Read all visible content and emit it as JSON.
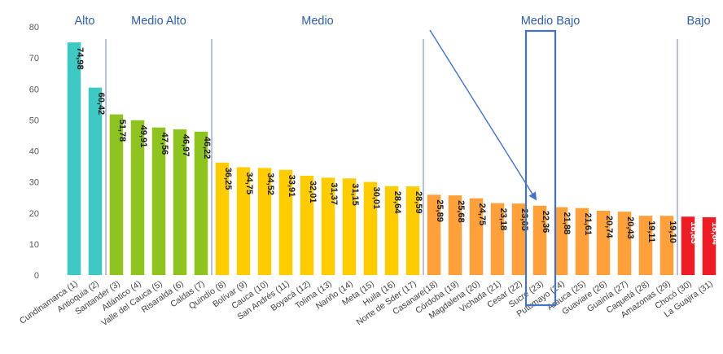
{
  "chart_data": {
    "type": "bar",
    "ylim": [
      0,
      80
    ],
    "yticks": [
      0,
      10,
      20,
      30,
      40,
      50,
      60,
      70,
      80
    ],
    "grid": false,
    "categories": [
      "Cundinamarca (1)",
      "Antioquia (2)",
      "Santander (3)",
      "Atlántico (4)",
      "Valle del Cauca (5)",
      "Risaralda (6)",
      "Caldas (7)",
      "Quindío (8)",
      "Bolívar (9)",
      "Cauca (10)",
      "San Andrés (11)",
      "Boyacá (12)",
      "Tolima (13)",
      "Nariño (14)",
      "Meta (15)",
      "Huila (16)",
      "Norte de Sder (17)",
      "Casanare(18)",
      "Córdoba (19)",
      "Magdalena (20)",
      "Vichada (21)",
      "Cesar (22)",
      "Sucre (23)",
      "Putumayo (24)",
      "Arauca (25)",
      "Guaviare (26)",
      "Guainía (27)",
      "Caquetá (28)",
      "Amazonas (29)",
      "Chocó (30)",
      "La Guajira (31)"
    ],
    "values": [
      74.98,
      60.42,
      51.78,
      49.91,
      47.56,
      46.97,
      46.22,
      36.25,
      34.75,
      34.52,
      33.91,
      32.01,
      31.37,
      31.15,
      30.01,
      28.64,
      28.59,
      25.89,
      25.68,
      24.75,
      23.18,
      23.05,
      22.36,
      21.88,
      21.61,
      20.74,
      20.43,
      19.11,
      19.1,
      18.83,
      18.64
    ],
    "data_labels": [
      "74,98",
      "60,42",
      "51,78",
      "49,91",
      "47,56",
      "46,97",
      "46,22",
      "36,25",
      "34,75",
      "34,52",
      "33,91",
      "32,01",
      "31,37",
      "31,15",
      "30,01",
      "28,64",
      "28,59",
      "25,89",
      "25,68",
      "24,75",
      "23,18",
      "23,05",
      "22,36",
      "21,88",
      "21,61",
      "20,74",
      "20,43",
      "19,11",
      "19,10",
      "18,83",
      "18,64"
    ],
    "groups": [
      {
        "label": "Alto",
        "start": 0,
        "end": 1,
        "color": "#3ec9c4",
        "text_color": "#1a1a1a"
      },
      {
        "label": "Medio Alto",
        "start": 2,
        "end": 6,
        "color": "#8fc31f",
        "text_color": "#1a1a1a"
      },
      {
        "label": "Medio",
        "start": 7,
        "end": 16,
        "color": "#ffcc00",
        "text_color": "#1a1a1a"
      },
      {
        "label": "Medio Bajo",
        "start": 17,
        "end": 28,
        "color": "#ffa03a",
        "text_color": "#1a1a1a"
      },
      {
        "label": "Bajo",
        "start": 29,
        "end": 30,
        "color": "#ee1c25",
        "text_color": "#ffffff"
      }
    ],
    "highlight_index": 22,
    "group_label_color": "#2e5fa3",
    "separator_color": "#8896c8",
    "highlight_color": "#4472c4"
  }
}
